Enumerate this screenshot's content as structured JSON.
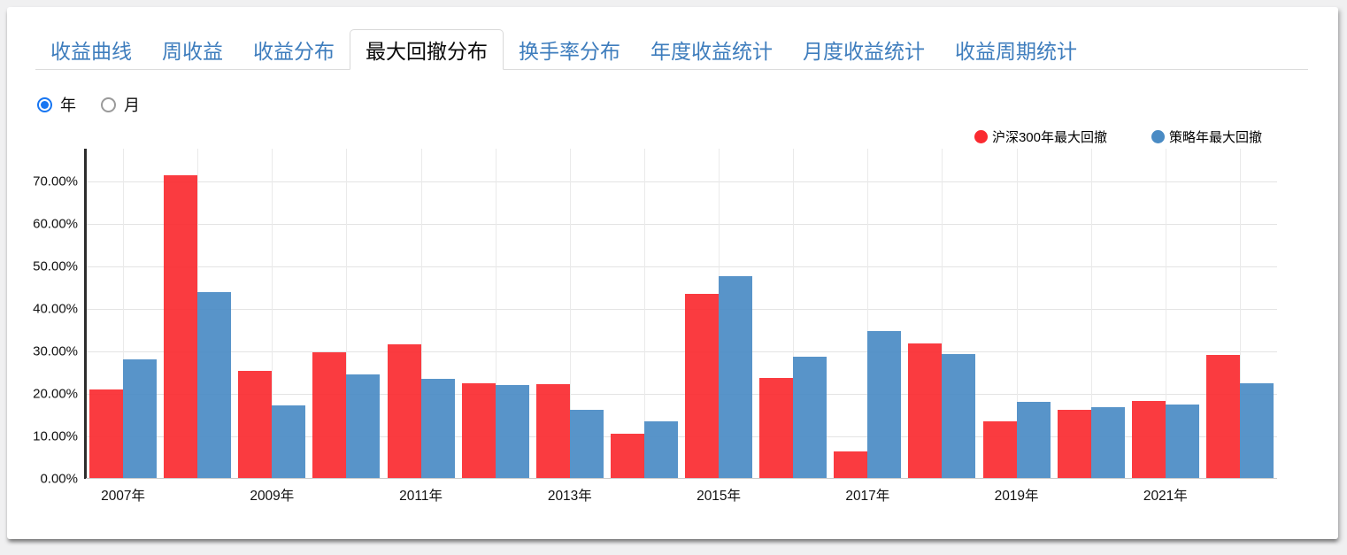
{
  "tabs": [
    {
      "label": "收益曲线",
      "active": false
    },
    {
      "label": "周收益",
      "active": false
    },
    {
      "label": "收益分布",
      "active": false
    },
    {
      "label": "最大回撤分布",
      "active": true
    },
    {
      "label": "换手率分布",
      "active": false
    },
    {
      "label": "年度收益统计",
      "active": false
    },
    {
      "label": "月度收益统计",
      "active": false
    },
    {
      "label": "收益周期统计",
      "active": false
    }
  ],
  "period_toggle": {
    "selected": "年",
    "options": [
      {
        "label": "年",
        "selected": true
      },
      {
        "label": "月",
        "selected": false
      }
    ]
  },
  "colors": {
    "accent_blue": "#3e7dbd",
    "radio_blue": "#1876f2",
    "benchmark_red": "#fa2a30",
    "strategy_blue": "#4a8bc4"
  },
  "chart_data": {
    "type": "bar",
    "title": "最大回撤分布",
    "categories": [
      2007,
      2008,
      2009,
      2010,
      2011,
      2012,
      2013,
      2014,
      2015,
      2016,
      2017,
      2018,
      2019,
      2020,
      2021,
      2022
    ],
    "series": [
      {
        "name": "沪深300年最大回撤",
        "color": "#fa2a30",
        "values": [
          20.8,
          71.3,
          25.2,
          29.6,
          31.5,
          22.3,
          22.1,
          10.4,
          43.4,
          23.5,
          6.3,
          31.7,
          13.4,
          16.1,
          18.2,
          28.9
        ]
      },
      {
        "name": "策略年最大回撤",
        "color": "#4a8bc4",
        "values": [
          27.9,
          43.8,
          17.0,
          24.4,
          23.3,
          21.8,
          16.1,
          13.3,
          47.5,
          28.5,
          34.6,
          29.1,
          18.0,
          16.6,
          17.2,
          22.3
        ]
      }
    ],
    "xlabel": "",
    "ylabel": "",
    "ylim": [
      0,
      77.7
    ],
    "y_ticks": [
      "0.00%",
      "10.00%",
      "20.00%",
      "30.00%",
      "40.00%",
      "50.00%",
      "60.00%",
      "70.00%"
    ],
    "x_tick_labels": [
      "2007年",
      "2009年",
      "2011年",
      "2013年",
      "2015年",
      "2017年",
      "2019年",
      "2021年"
    ],
    "x_tick_every": 2,
    "grid": true,
    "legend_position": "top-right"
  }
}
